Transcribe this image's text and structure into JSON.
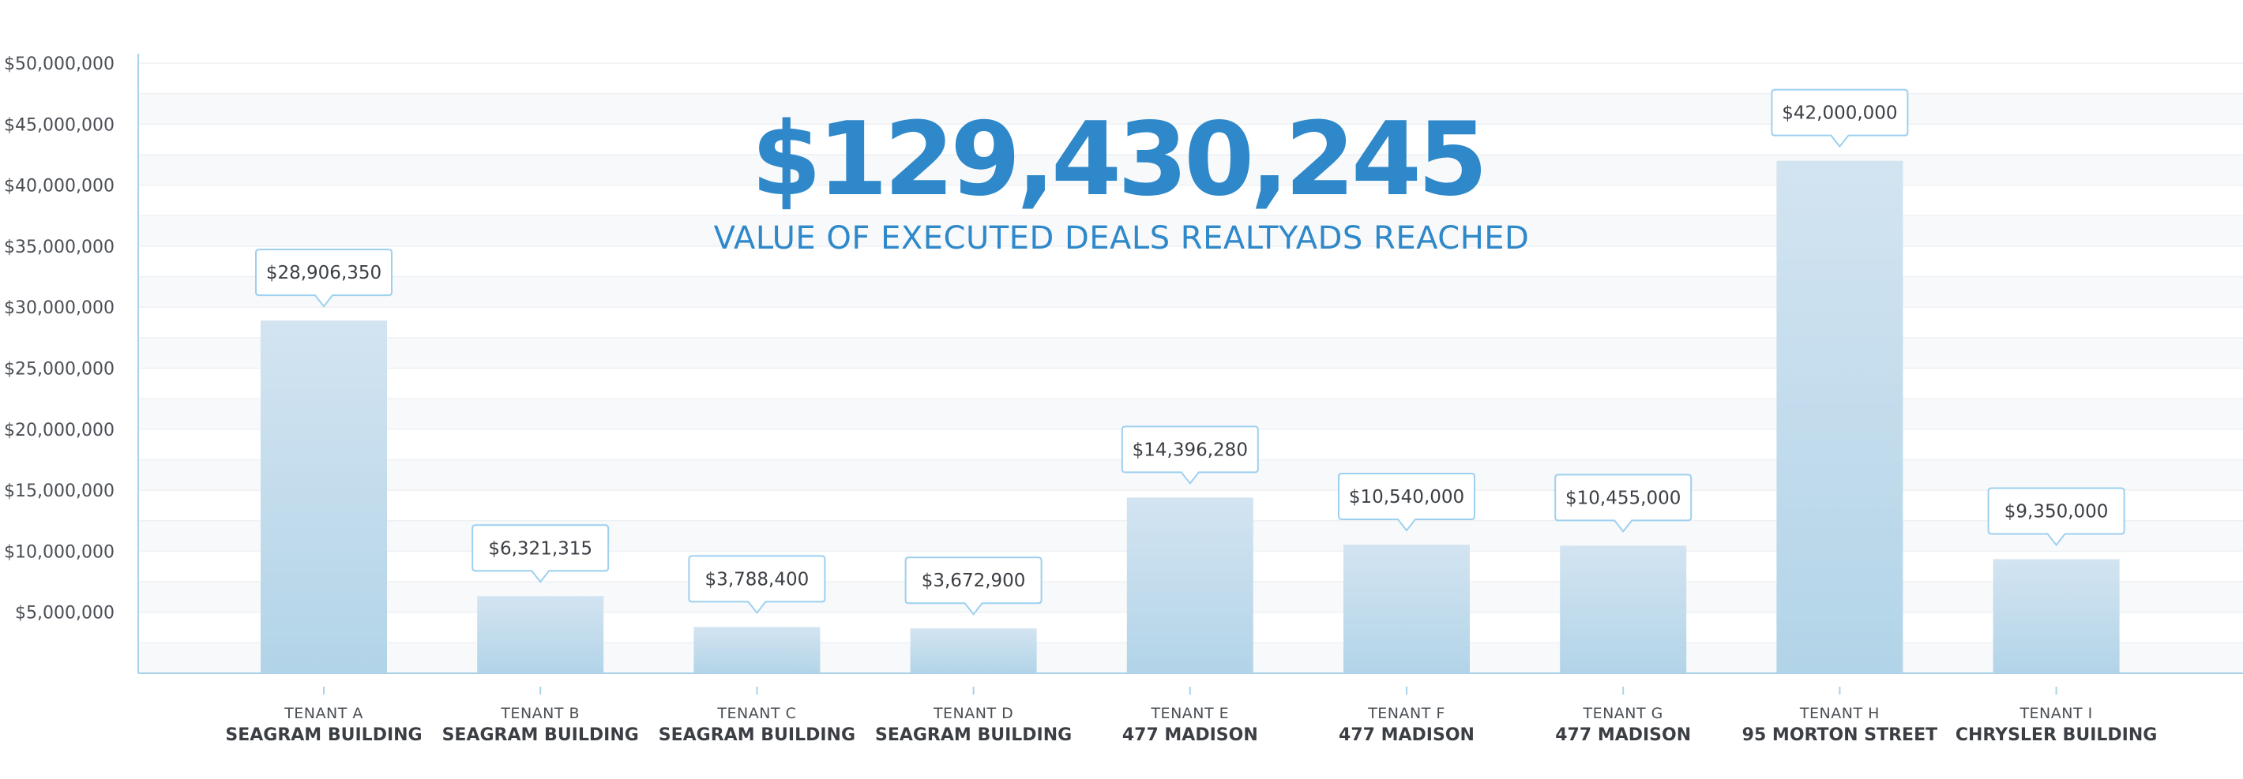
{
  "headline": {
    "total": "$129,430,245",
    "subtitle": "VALUE OF EXECUTED DEALS REALTYADS REACHED"
  },
  "colors": {
    "accent": "#2e88c9",
    "bar_top": "#d3e4f1",
    "bar_bottom": "#b2d4e8",
    "axis": "#a9d1ea",
    "callout_border": "#9dd0ef",
    "band_light": "#f8f9fa",
    "grid": "#eef1f4"
  },
  "chart_data": {
    "type": "bar",
    "title": "VALUE OF EXECUTED DEALS REALTYADS REACHED",
    "xlabel": "",
    "ylabel": "",
    "ylim": [
      0,
      50000000
    ],
    "y_ticks": [
      5000000,
      10000000,
      15000000,
      20000000,
      25000000,
      30000000,
      35000000,
      40000000,
      45000000,
      50000000
    ],
    "y_tick_labels": [
      "$5,000,000",
      "$10,000,000",
      "$15,000,000",
      "$20,000,000",
      "$25,000,000",
      "$30,000,000",
      "$35,000,000",
      "$40,000,000",
      "$45,000,000",
      "$50,000,000"
    ],
    "grid": true,
    "categories": [
      {
        "tenant": "TENANT A",
        "building": "SEAGRAM BUILDING"
      },
      {
        "tenant": "TENANT B",
        "building": "SEAGRAM BUILDING"
      },
      {
        "tenant": "TENANT C",
        "building": "SEAGRAM BUILDING"
      },
      {
        "tenant": "TENANT D",
        "building": "SEAGRAM BUILDING"
      },
      {
        "tenant": "TENANT E",
        "building": "477 MADISON"
      },
      {
        "tenant": "TENANT F",
        "building": "477 MADISON"
      },
      {
        "tenant": "TENANT G",
        "building": "477 MADISON"
      },
      {
        "tenant": "TENANT H",
        "building": "95 MORTON STREET"
      },
      {
        "tenant": "TENANT I",
        "building": "CHRYSLER BUILDING"
      }
    ],
    "values": [
      28906350,
      6321315,
      3788400,
      3672900,
      14396280,
      10540000,
      10455000,
      42000000,
      9350000
    ],
    "value_labels": [
      "$28,906,350",
      "$6,321,315",
      "$3,788,400",
      "$3,672,900",
      "$14,396,280",
      "$10,540,000",
      "$10,455,000",
      "$42,000,000",
      "$9,350,000"
    ]
  }
}
